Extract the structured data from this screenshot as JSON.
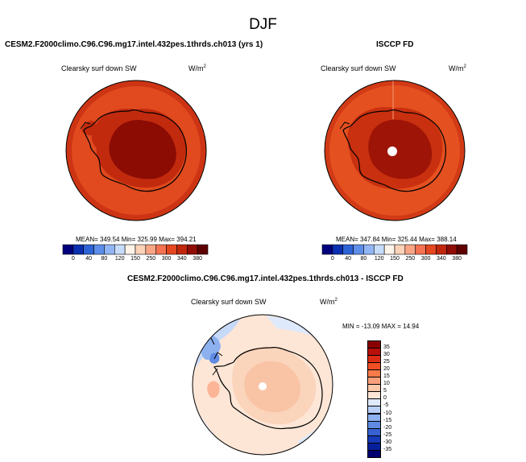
{
  "page_title": "DJF",
  "panels": {
    "model": {
      "title": "CESM2.F2000climo.C96.C96.mg17.intel.432pes.1thrds.ch013 (yrs 1)",
      "variable": "Clearsky surf down SW",
      "units": "W/m",
      "units_exp": "2",
      "stats": "MEAN= 349.54  Min= 325.99  Max= 394.21"
    },
    "obs": {
      "title": "ISCCP FD",
      "variable": "Clearsky surf down SW",
      "units": "W/m",
      "units_exp": "2",
      "stats": "MEAN= 347.84  Min= 325.44  Max= 388.14"
    },
    "diff": {
      "title": "CESM2.F2000climo.C96.C96.mg17.intel.432pes.1thrds.ch013 - ISCCP FD",
      "variable": "Clearsky surf down SW",
      "units": "W/m",
      "units_exp": "2",
      "stats": "MIN = -13.09 MAX =  14.94"
    }
  },
  "colorbar_main": {
    "labels": [
      "0",
      "40",
      "80",
      "120",
      "150",
      "250",
      "300",
      "340",
      "380"
    ],
    "colors": [
      "#00007d",
      "#0a2fb0",
      "#2e63d6",
      "#5e8ee9",
      "#92b6f5",
      "#c7dcfa",
      "#fef3e9",
      "#fcd2b8",
      "#f9a585",
      "#f57252",
      "#e54720",
      "#c1270d",
      "#8f0d05",
      "#5e0000"
    ]
  },
  "colorbar_diff": {
    "labels": [
      "35",
      "30",
      "25",
      "20",
      "15",
      "10",
      "5",
      "0",
      "-5",
      "-10",
      "-15",
      "-20",
      "-25",
      "-30",
      "-35"
    ],
    "colors": [
      "#8a0000",
      "#b80f0a",
      "#dc2c16",
      "#f04e24",
      "#f87a4a",
      "#fba07c",
      "#fdc7aa",
      "#fde6d6",
      "#dfe9fc",
      "#b8cff7",
      "#8db0ef",
      "#5f8be4",
      "#3761d2",
      "#163ab8",
      "#05209a",
      "#00006e"
    ]
  }
}
